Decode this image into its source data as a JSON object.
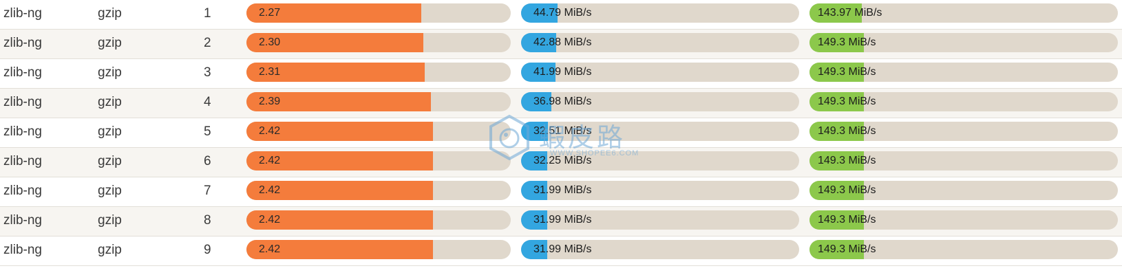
{
  "rows": [
    {
      "library": "zlib-ng",
      "format": "gzip",
      "level": "1",
      "ratio": "2.27",
      "ratio_value": 2.27,
      "compress": "44.79 MiB/s",
      "compress_value": 44.79,
      "decompress": "143.97 MiB/s",
      "decompress_value": 143.97
    },
    {
      "library": "zlib-ng",
      "format": "gzip",
      "level": "2",
      "ratio": "2.30",
      "ratio_value": 2.3,
      "compress": "42.88 MiB/s",
      "compress_value": 42.88,
      "decompress": "149.3 MiB/s",
      "decompress_value": 149.3
    },
    {
      "library": "zlib-ng",
      "format": "gzip",
      "level": "3",
      "ratio": "2.31",
      "ratio_value": 2.31,
      "compress": "41.99 MiB/s",
      "compress_value": 41.99,
      "decompress": "149.3 MiB/s",
      "decompress_value": 149.3
    },
    {
      "library": "zlib-ng",
      "format": "gzip",
      "level": "4",
      "ratio": "2.39",
      "ratio_value": 2.39,
      "compress": "36.98 MiB/s",
      "compress_value": 36.98,
      "decompress": "149.3 MiB/s",
      "decompress_value": 149.3
    },
    {
      "library": "zlib-ng",
      "format": "gzip",
      "level": "5",
      "ratio": "2.42",
      "ratio_value": 2.42,
      "compress": "32.51 MiB/s",
      "compress_value": 32.51,
      "decompress": "149.3 MiB/s",
      "decompress_value": 149.3
    },
    {
      "library": "zlib-ng",
      "format": "gzip",
      "level": "6",
      "ratio": "2.42",
      "ratio_value": 2.42,
      "compress": "32.25 MiB/s",
      "compress_value": 32.25,
      "decompress": "149.3 MiB/s",
      "decompress_value": 149.3
    },
    {
      "library": "zlib-ng",
      "format": "gzip",
      "level": "7",
      "ratio": "2.42",
      "ratio_value": 2.42,
      "compress": "31.99 MiB/s",
      "compress_value": 31.99,
      "decompress": "149.3 MiB/s",
      "decompress_value": 149.3
    },
    {
      "library": "zlib-ng",
      "format": "gzip",
      "level": "8",
      "ratio": "2.42",
      "ratio_value": 2.42,
      "compress": "31.99 MiB/s",
      "compress_value": 31.99,
      "decompress": "149.3 MiB/s",
      "decompress_value": 149.3
    },
    {
      "library": "zlib-ng",
      "format": "gzip",
      "level": "9",
      "ratio": "2.42",
      "ratio_value": 2.42,
      "compress": "31.99 MiB/s",
      "compress_value": 31.99,
      "decompress": "149.3 MiB/s",
      "decompress_value": 149.3
    }
  ],
  "scales": {
    "ratio_max": 3.43,
    "compress_max": 340,
    "decompress_max": 848
  },
  "watermark": {
    "title": "蝦皮路",
    "url": "— WWW.SHOPEE6.COM —"
  },
  "colors": {
    "ratio": "#f47c3c",
    "compress": "#33a6e0",
    "decompress": "#8cc84b",
    "track": "#e0d8cc"
  }
}
